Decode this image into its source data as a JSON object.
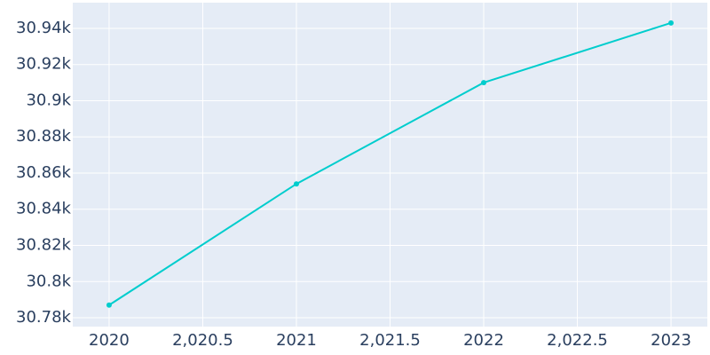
{
  "chart_data": {
    "type": "line",
    "x": [
      2020,
      2021,
      2022,
      2023
    ],
    "series": [
      {
        "color": "#00cdcd",
        "values": [
          30787,
          30854,
          30910,
          30943
        ]
      }
    ],
    "xlim": [
      2019.806,
      2023.194
    ],
    "xticks": [
      2020,
      {
        "value": 2020.5,
        "label": "2,020.5"
      },
      2021,
      {
        "value": 2021.5,
        "label": "2,021.5"
      },
      2022,
      {
        "value": 2022.5,
        "label": "2,022.5"
      },
      2023
    ],
    "ylim": [
      30775.1,
      30954.2
    ],
    "yticks": [
      {
        "value": 30780,
        "label": "30.78k"
      },
      {
        "value": 30800,
        "label": "30.8k"
      },
      {
        "value": 30820,
        "label": "30.82k"
      },
      {
        "value": 30840,
        "label": "30.84k"
      },
      {
        "value": 30860,
        "label": "30.86k"
      },
      {
        "value": 30880,
        "label": "30.88k"
      },
      {
        "value": 30900,
        "label": "30.9k"
      },
      {
        "value": 30920,
        "label": "30.92k"
      },
      {
        "value": 30940,
        "label": "30.94k"
      }
    ],
    "grid": true
  }
}
